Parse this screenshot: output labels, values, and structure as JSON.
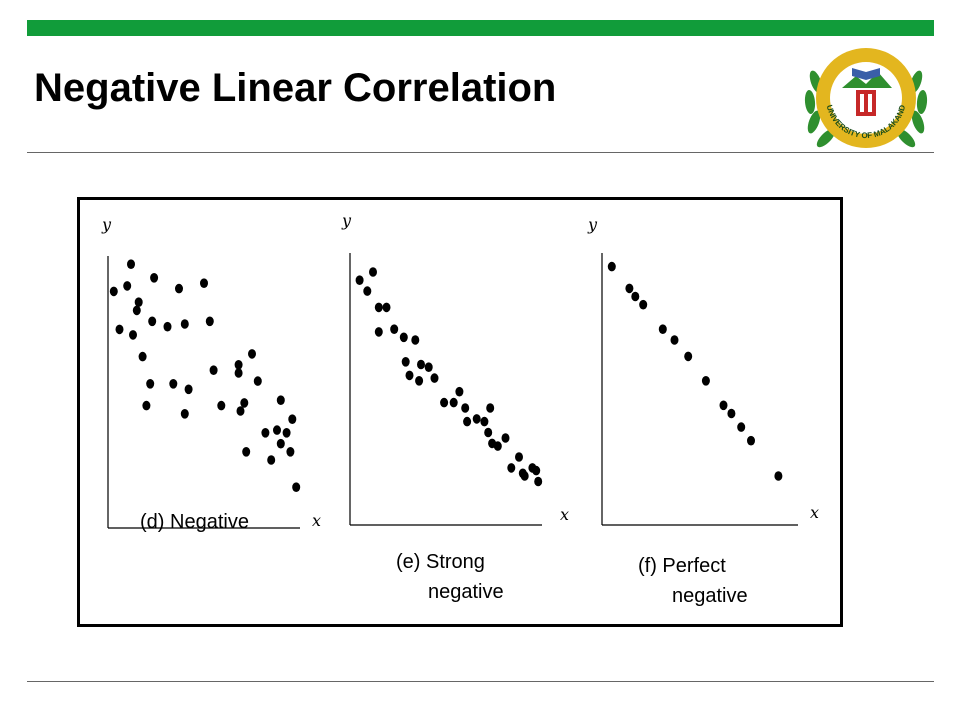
{
  "slide": {
    "title": "Negative Linear Correlation",
    "logo_text": "UNIVERSITY OF MALAKAND",
    "colors": {
      "accent_bar": "#119c3a",
      "logo_ring": "#e3b61f",
      "logo_leaf": "#2f8f2f",
      "logo_emblem": "#c62828"
    }
  },
  "chart_data": [
    {
      "type": "scatter",
      "xlabel": "x",
      "ylabel": "y",
      "caption": [
        "(d) Negative"
      ],
      "xlim": [
        0,
        10
      ],
      "ylim": [
        0,
        10
      ],
      "points": [
        [
          0.3,
          8.7
        ],
        [
          0.6,
          7.3
        ],
        [
          1.0,
          8.9
        ],
        [
          1.2,
          9.7
        ],
        [
          1.3,
          7.1
        ],
        [
          1.5,
          8.0
        ],
        [
          1.6,
          8.3
        ],
        [
          1.8,
          6.3
        ],
        [
          2.0,
          4.5
        ],
        [
          2.2,
          5.3
        ],
        [
          2.3,
          7.6
        ],
        [
          2.4,
          9.2
        ],
        [
          3.1,
          7.4
        ],
        [
          3.4,
          5.3
        ],
        [
          3.7,
          8.8
        ],
        [
          4.0,
          7.5
        ],
        [
          4.2,
          5.1
        ],
        [
          4.0,
          4.2
        ],
        [
          5.0,
          9.0
        ],
        [
          5.3,
          7.6
        ],
        [
          5.9,
          4.5
        ],
        [
          5.5,
          5.8
        ],
        [
          6.8,
          6.0
        ],
        [
          6.9,
          4.3
        ],
        [
          6.8,
          5.7
        ],
        [
          7.1,
          4.6
        ],
        [
          7.5,
          6.4
        ],
        [
          7.8,
          5.4
        ],
        [
          8.2,
          3.5
        ],
        [
          8.5,
          2.5
        ],
        [
          9.0,
          3.1
        ],
        [
          9.5,
          2.8
        ],
        [
          9.6,
          4.0
        ],
        [
          9.0,
          4.7
        ],
        [
          9.3,
          3.5
        ],
        [
          9.8,
          1.5
        ],
        [
          7.2,
          2.8
        ],
        [
          8.8,
          3.6
        ]
      ]
    },
    {
      "type": "scatter",
      "xlabel": "x",
      "ylabel": "y",
      "caption": [
        "(e) Strong",
        "negative"
      ],
      "xlim": [
        0,
        10
      ],
      "ylim": [
        0,
        10
      ],
      "points": [
        [
          0.5,
          9.0
        ],
        [
          0.9,
          8.6
        ],
        [
          1.2,
          9.3
        ],
        [
          1.5,
          8.0
        ],
        [
          1.9,
          8.0
        ],
        [
          1.5,
          7.1
        ],
        [
          2.3,
          7.2
        ],
        [
          2.8,
          6.9
        ],
        [
          3.4,
          6.8
        ],
        [
          2.9,
          6.0
        ],
        [
          3.1,
          5.5
        ],
        [
          3.7,
          5.9
        ],
        [
          3.6,
          5.3
        ],
        [
          4.1,
          5.8
        ],
        [
          4.4,
          5.4
        ],
        [
          4.9,
          4.5
        ],
        [
          5.4,
          4.5
        ],
        [
          5.7,
          4.9
        ],
        [
          6.0,
          4.3
        ],
        [
          6.1,
          3.8
        ],
        [
          6.6,
          3.9
        ],
        [
          7.0,
          3.8
        ],
        [
          7.3,
          4.3
        ],
        [
          7.2,
          3.4
        ],
        [
          7.4,
          3.0
        ],
        [
          7.7,
          2.9
        ],
        [
          8.1,
          3.2
        ],
        [
          8.4,
          2.1
        ],
        [
          8.8,
          2.5
        ],
        [
          9.0,
          1.9
        ],
        [
          9.5,
          2.1
        ],
        [
          9.8,
          1.6
        ],
        [
          9.1,
          1.8
        ],
        [
          9.7,
          2.0
        ]
      ]
    },
    {
      "type": "scatter",
      "xlabel": "x",
      "ylabel": "y",
      "caption": [
        "(f) Perfect",
        "negative"
      ],
      "xlim": [
        0,
        10
      ],
      "ylim": [
        0,
        10
      ],
      "points": [
        [
          0.5,
          9.5
        ],
        [
          1.4,
          8.7
        ],
        [
          1.7,
          8.4
        ],
        [
          2.1,
          8.1
        ],
        [
          3.1,
          7.2
        ],
        [
          3.7,
          6.8
        ],
        [
          4.4,
          6.2
        ],
        [
          5.3,
          5.3
        ],
        [
          6.2,
          4.4
        ],
        [
          6.6,
          4.1
        ],
        [
          7.1,
          3.6
        ],
        [
          7.6,
          3.1
        ],
        [
          9.0,
          1.8
        ]
      ]
    }
  ]
}
